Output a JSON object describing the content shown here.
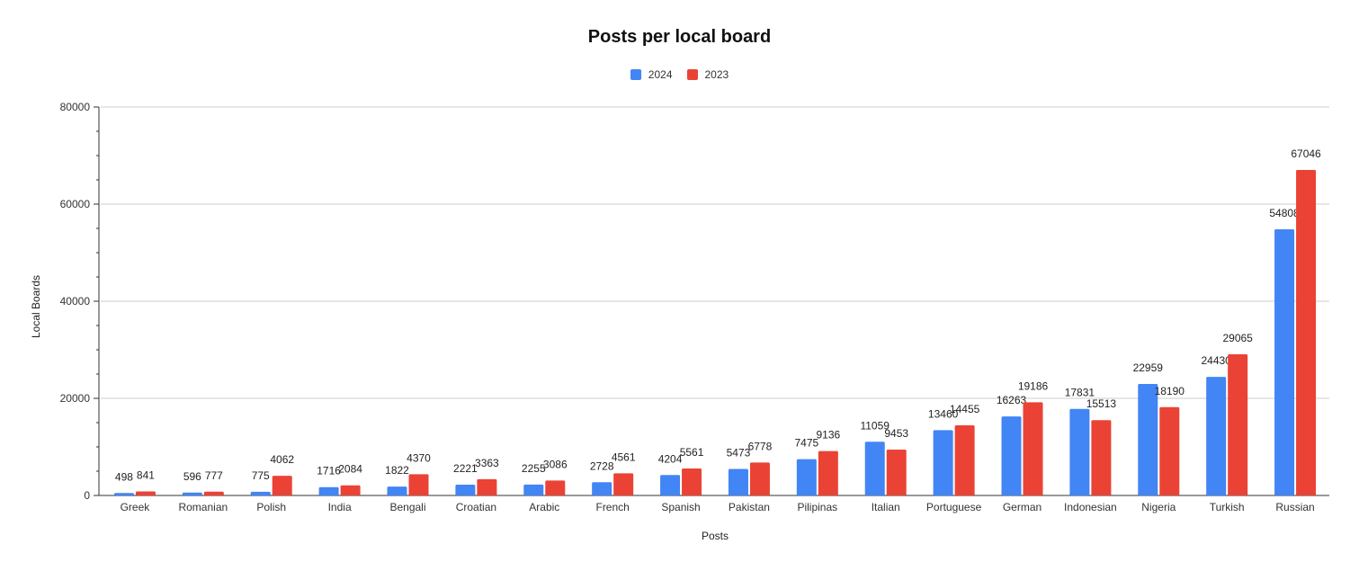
{
  "chart_data": {
    "type": "bar",
    "title": "Posts per local board",
    "xlabel": "Posts",
    "ylabel": "Local Boards",
    "ylim": [
      0,
      80000
    ],
    "yticks": [
      0,
      20000,
      40000,
      60000,
      80000
    ],
    "grid": true,
    "legend_position": "top",
    "categories": [
      "Greek",
      "Romanian",
      "Polish",
      "India",
      "Bengali",
      "Croatian",
      "Arabic",
      "French",
      "Spanish",
      "Pakistan",
      "Pilipinas",
      "Italian",
      "Portuguese",
      "German",
      "Indonesian",
      "Nigeria",
      "Turkish",
      "Russian"
    ],
    "series": [
      {
        "name": "2024",
        "color": "#4285f4",
        "values": [
          498,
          596,
          775,
          1716,
          1822,
          2221,
          2255,
          2728,
          4204,
          5473,
          7475,
          11059,
          13460,
          16263,
          17831,
          22959,
          24430,
          54808
        ]
      },
      {
        "name": "2023",
        "color": "#ea4335",
        "values": [
          841,
          777,
          4062,
          2084,
          4370,
          3363,
          3086,
          4561,
          5561,
          6778,
          9136,
          9453,
          14455,
          19186,
          15513,
          18190,
          29065,
          67046
        ]
      }
    ]
  }
}
